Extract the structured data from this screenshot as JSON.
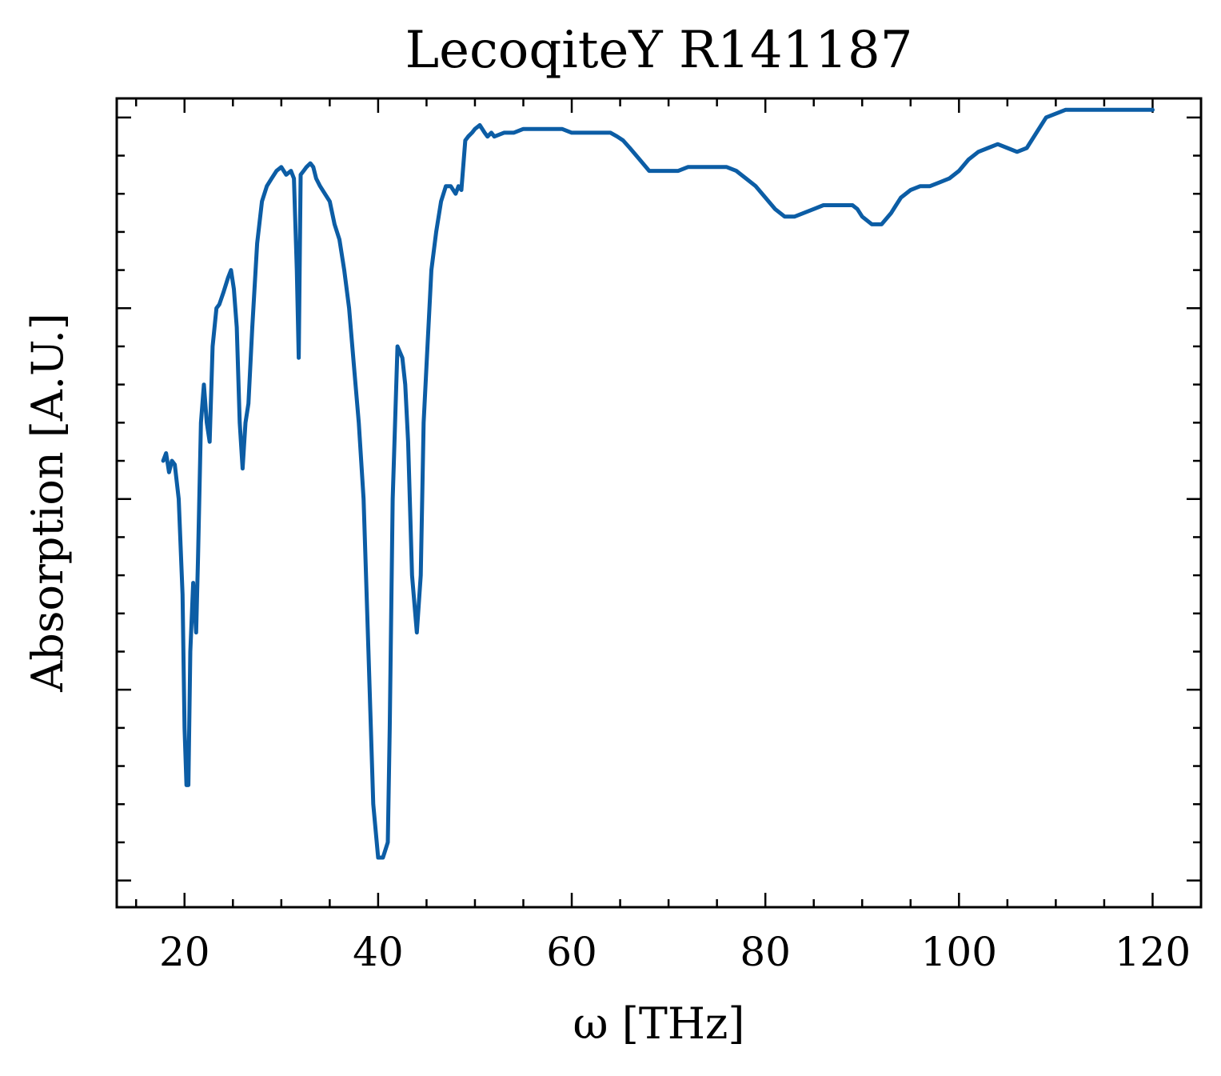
{
  "chart_data": {
    "type": "line",
    "title": "LecoqiteY R141187",
    "xlabel": "ω [THz]",
    "ylabel": "Absorption [A.U.]",
    "xlim": [
      13.0,
      125.0
    ],
    "ylim": [
      -0.07,
      2.05
    ],
    "x_ticks": [
      20,
      40,
      60,
      80,
      100,
      120
    ],
    "x_tick_labels": [
      "20",
      "40",
      "60",
      "80",
      "100",
      "120"
    ],
    "x_minor_step": 5,
    "y_ticks": [
      0.0,
      0.5,
      1.0,
      1.5,
      2.0
    ],
    "y_minor_step": 0.1,
    "y_tick_labels_shown": false,
    "grid": false,
    "colors": {
      "line": "#0c5da5",
      "frame": "#000000"
    },
    "series": [
      {
        "x": [
          17.8,
          18.1,
          18.4,
          18.7,
          19.0,
          19.4,
          19.8,
          20.0,
          20.2,
          20.4,
          20.6,
          20.9,
          21.2,
          21.4,
          21.7,
          22.0,
          22.3,
          22.6,
          22.9,
          23.3,
          23.6,
          24.0,
          24.5,
          24.8,
          25.1,
          25.4,
          25.7,
          26.0,
          26.3,
          26.6,
          27.0,
          27.5,
          28.0,
          28.5,
          29.0,
          29.5,
          30.0,
          30.5,
          31.0,
          31.3,
          31.6,
          31.8,
          32.0,
          32.3,
          32.6,
          33.0,
          33.3,
          33.6,
          34.0,
          34.5,
          35.0,
          35.5,
          36.0,
          36.5,
          37.0,
          37.5,
          38.0,
          38.5,
          39.0,
          39.5,
          40.0,
          40.5,
          41.0,
          41.2,
          41.5,
          42.0,
          42.5,
          42.8,
          43.1,
          43.5,
          44.0,
          44.4,
          44.7,
          45.0,
          45.5,
          46.0,
          46.5,
          47.0,
          47.5,
          48.0,
          48.3,
          48.6,
          49.0,
          49.3,
          49.7,
          50.0,
          50.5,
          51.0,
          51.3,
          51.7,
          52.0,
          53.0,
          54.0,
          55.0,
          56.0,
          57.0,
          58.0,
          59.0,
          60.0,
          61.0,
          62.0,
          63.0,
          64.0,
          64.7,
          65.3,
          66.0,
          67.0,
          68.0,
          69.0,
          70.0,
          71.0,
          72.0,
          73.0,
          74.0,
          75.0,
          76.0,
          77.0,
          78.0,
          79.0,
          80.0,
          81.0,
          82.0,
          83.0,
          84.0,
          85.0,
          86.0,
          87.0,
          88.0,
          89.0,
          89.5,
          90.0,
          91.0,
          92.0,
          93.0,
          93.5,
          94.0,
          95.0,
          96.0,
          97.0,
          98.0,
          99.0,
          100.0,
          101.0,
          102.0,
          103.0,
          104.0,
          105.0,
          106.0,
          107.0,
          108.0,
          109.0,
          110.0,
          111.0,
          112.0,
          113.0,
          114.0,
          115.0,
          116.0,
          117.0,
          118.0,
          119.0,
          120.0
        ],
        "y": [
          1.1,
          1.12,
          1.07,
          1.1,
          1.09,
          1.0,
          0.75,
          0.4,
          0.25,
          0.25,
          0.6,
          0.78,
          0.65,
          0.85,
          1.2,
          1.3,
          1.2,
          1.15,
          1.4,
          1.5,
          1.51,
          1.54,
          1.58,
          1.6,
          1.55,
          1.45,
          1.2,
          1.08,
          1.2,
          1.25,
          1.45,
          1.67,
          1.78,
          1.82,
          1.84,
          1.86,
          1.87,
          1.85,
          1.86,
          1.84,
          1.6,
          1.37,
          1.85,
          1.86,
          1.87,
          1.88,
          1.87,
          1.84,
          1.82,
          1.8,
          1.78,
          1.72,
          1.68,
          1.6,
          1.5,
          1.35,
          1.2,
          1.0,
          0.6,
          0.2,
          0.06,
          0.06,
          0.1,
          0.4,
          1.0,
          1.4,
          1.37,
          1.3,
          1.15,
          0.8,
          0.65,
          0.8,
          1.2,
          1.35,
          1.6,
          1.7,
          1.78,
          1.82,
          1.82,
          1.8,
          1.82,
          1.81,
          1.94,
          1.95,
          1.96,
          1.97,
          1.98,
          1.96,
          1.95,
          1.96,
          1.95,
          1.96,
          1.96,
          1.97,
          1.97,
          1.97,
          1.97,
          1.97,
          1.96,
          1.96,
          1.96,
          1.96,
          1.96,
          1.95,
          1.94,
          1.92,
          1.89,
          1.86,
          1.86,
          1.86,
          1.86,
          1.87,
          1.87,
          1.87,
          1.87,
          1.87,
          1.86,
          1.84,
          1.82,
          1.79,
          1.76,
          1.74,
          1.74,
          1.75,
          1.76,
          1.77,
          1.77,
          1.77,
          1.77,
          1.76,
          1.74,
          1.72,
          1.72,
          1.75,
          1.77,
          1.79,
          1.81,
          1.82,
          1.82,
          1.83,
          1.84,
          1.86,
          1.89,
          1.91,
          1.92,
          1.93,
          1.92,
          1.91,
          1.92,
          1.96,
          2.0,
          2.01,
          2.02,
          2.02,
          2.02,
          2.02,
          2.02,
          2.02,
          2.02,
          2.02,
          2.02,
          2.02
        ]
      }
    ]
  }
}
